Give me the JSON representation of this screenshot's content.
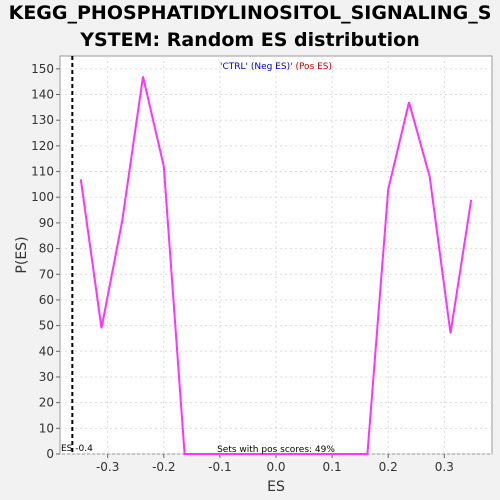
{
  "chart_data": {
    "type": "line",
    "title_line1": "KEGG_PHOSPHATIDYLINOSITOL_SIGNALING_S",
    "title_line2": "YSTEM: Random ES distribution",
    "xlabel": "ES",
    "ylabel": "P(ES)",
    "xlim": [
      -0.385,
      0.385
    ],
    "ylim": [
      0,
      155
    ],
    "xticks": [
      -0.3,
      -0.2,
      -0.1,
      0.0,
      0.1,
      0.2,
      0.3
    ],
    "xtick_labels": [
      "-0.3",
      "-0.2",
      "-0.1",
      "0.0",
      "0.1",
      "0.2",
      "0.3"
    ],
    "yticks": [
      0,
      10,
      20,
      30,
      40,
      50,
      60,
      70,
      80,
      90,
      100,
      110,
      120,
      130,
      140,
      150
    ],
    "ytick_labels": [
      "0",
      "10",
      "20",
      "30",
      "40",
      "50",
      "60",
      "70",
      "80",
      "90",
      "100",
      "110",
      "120",
      "130",
      "140",
      "150"
    ],
    "grid": true,
    "series": [
      {
        "color": "#ff33ff",
        "x": [
          -0.348,
          -0.311,
          -0.274,
          -0.237,
          -0.2,
          -0.163,
          -0.126,
          -0.089,
          -0.052,
          -0.015,
          0.022,
          0.059,
          0.096,
          0.133,
          0.163,
          0.2,
          0.237,
          0.274,
          0.311,
          0.348
        ],
        "y": [
          107,
          49,
          91,
          147,
          112,
          0,
          0,
          0,
          0,
          0,
          0,
          0,
          0,
          0,
          0,
          103,
          137,
          108,
          47,
          99
        ]
      }
    ],
    "legend": {
      "position": "top-center",
      "neg_text": "'CTRL' (Neg ES)",
      "sep_text": "'",
      "pos_text": " (Pos ES)",
      "neg_color": "#0000cc",
      "pos_color": "#cc0000"
    },
    "marker": {
      "x": -0.363,
      "label": "ES -0.4"
    },
    "annotation": "Sets with pos scores: 49%"
  }
}
